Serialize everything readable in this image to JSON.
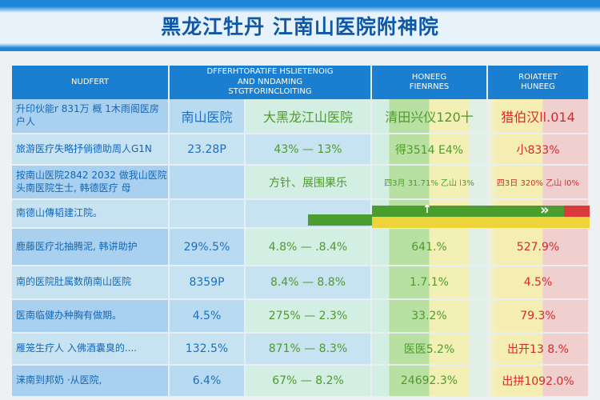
{
  "title": "黑龙江牡丹 江南山医院附神院",
  "headers": [
    "NUDFERT",
    "DFFERHTORATIFE HSLIETENOIG AND NNDAMING STGTFORINCLOITING",
    "HONEEG FIENRNES",
    "ROIATEET HUNEEG"
  ],
  "rows": [
    {
      "c0": "升印伙能r 831万 概 1木雨阁医房户人",
      "c1": "南山医院",
      "c2": "大黑龙江山医院",
      "c3": "清田兴仪120十",
      "c4": "猎伯汉ll.014"
    },
    {
      "c0": "旅游医疗失略抒倘德助周人G1N",
      "c1": "23.28P",
      "c2": "43% — 13%",
      "c3": "得3514 E4%",
      "c4": "小833%"
    },
    {
      "c0": "按南山医院2842 2032 做我山医院 头南医院生士, 韩德医疗 母",
      "c1": "",
      "c2": "方针、展围果乐",
      "c3": "四3月 31.71% 乙山 l3%",
      "c4": "四3日 320% 乙山 l0%"
    },
    {
      "c0": "南德山傳韬建江院。",
      "c1": "",
      "c2": "",
      "c3": "",
      "c4": ""
    },
    {
      "c0": "鹿藤医疗北抽腾泥, 韩讲助护",
      "c1": "29%.5%",
      "c2": "4.8% — .8.4%",
      "c3": "641.%",
      "c4": "527.9%"
    },
    {
      "c0": "南的医院肚属数荫南山医院",
      "c1": "8359P",
      "c2": "8.4% — 8.8%",
      "c3": "1.7.1%",
      "c4": "4.5%"
    },
    {
      "c0": "医南临健办种胸有做期。",
      "c1": "4.5%",
      "c2": "275% — 2.3%",
      "c3": "33.2%",
      "c4": "79.3%"
    },
    {
      "c0": "雁笼生疗人 入佛酒囊臭的....",
      "c1": "132.5%",
      "c2": "871% — 8.3%",
      "c3": "医医5.2%",
      "c4": "出开13 8.%"
    },
    {
      "c0": "涞南到邦奶 ·从医院,",
      "c1": "6.4%",
      "c2": "67% — 8.2%",
      "c3": "24692.3%",
      "c4": "出拼1092.0%"
    }
  ],
  "colors": {
    "header": "#1a7fd0",
    "title": "#0f58a8",
    "green": "#4f9a2c",
    "red": "#d62a2a",
    "yellow": "#ecd43a"
  }
}
